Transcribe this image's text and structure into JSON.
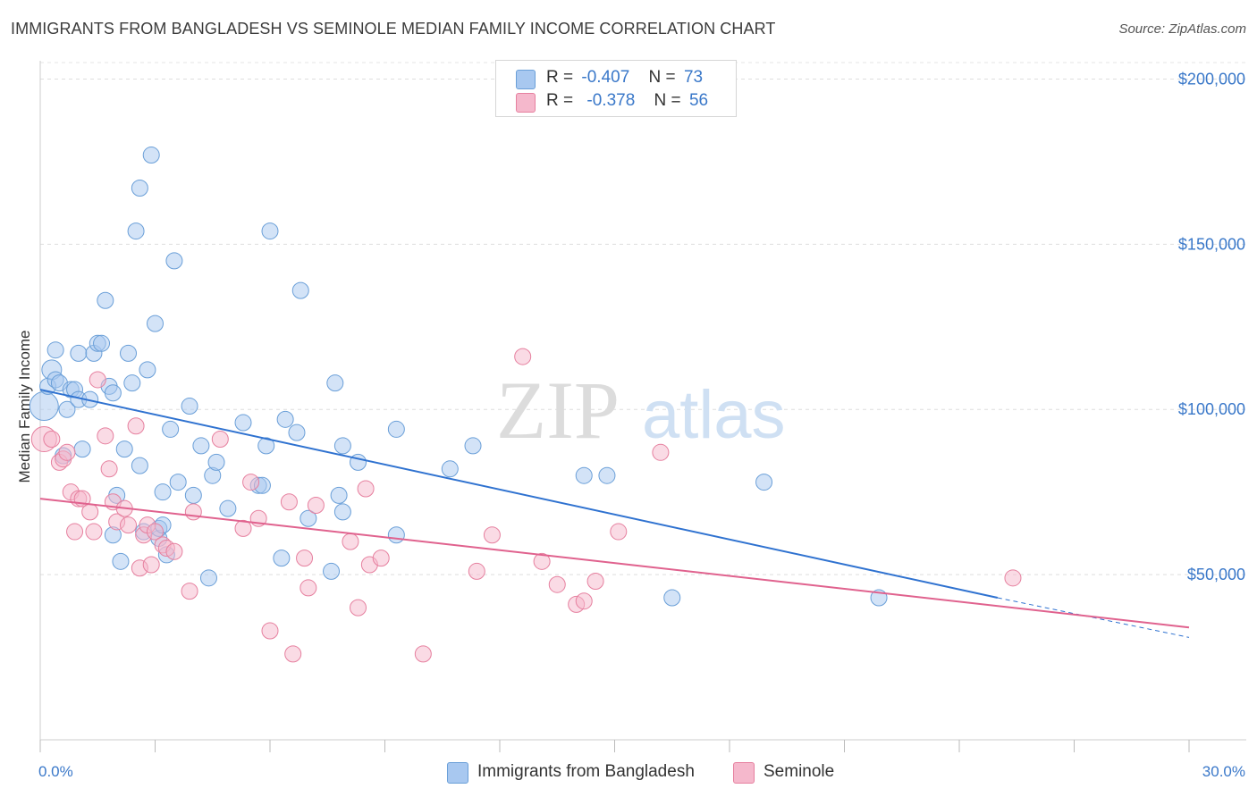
{
  "title": "IMMIGRANTS FROM BANGLADESH VS SEMINOLE MEDIAN FAMILY INCOME CORRELATION CHART",
  "source": "Source: ZipAtlas.com",
  "watermark": {
    "zip": "ZIP",
    "atlas": "atlas"
  },
  "legend": {
    "r_label": "R =",
    "n_label": "N =",
    "rows": [
      {
        "r": "-0.407",
        "n": "73",
        "color": "#a8c8f0",
        "border": "#6a9fd8"
      },
      {
        "r": "-0.378",
        "n": "56",
        "color": "#f5b8cc",
        "border": "#e6809f"
      }
    ]
  },
  "chart_data": {
    "type": "scatter",
    "title": "IMMIGRANTS FROM BANGLADESH VS SEMINOLE MEDIAN FAMILY INCOME CORRELATION CHART",
    "xlabel": "",
    "ylabel": "Median Family Income",
    "xlim": [
      0,
      30
    ],
    "ylim": [
      0,
      205000
    ],
    "x_tick_labels": [
      "0.0%",
      "30.0%"
    ],
    "y_ticks": [
      50000,
      100000,
      150000,
      200000
    ],
    "y_tick_labels": [
      "$50,000",
      "$100,000",
      "$150,000",
      "$200,000"
    ],
    "grid": "horizontal dashed",
    "legend_position": "top-center",
    "series": [
      {
        "name": "Immigrants from Bangladesh",
        "color": "#a8c8f0",
        "stroke": "#6a9fd8",
        "trend_color": "#2f72d0",
        "trend": {
          "x0": 0,
          "y0": 106000,
          "x1": 25,
          "y1": 43000,
          "dashed_to_x": 30,
          "dashed_to_y": 31000
        },
        "points": [
          [
            0.1,
            101000
          ],
          [
            0.2,
            107000
          ],
          [
            0.3,
            112000
          ],
          [
            0.4,
            109000
          ],
          [
            0.4,
            118000
          ],
          [
            0.5,
            108000
          ],
          [
            0.6,
            86000
          ],
          [
            0.7,
            100000
          ],
          [
            0.8,
            106000
          ],
          [
            0.9,
            106000
          ],
          [
            1.0,
            103000
          ],
          [
            1.1,
            88000
          ],
          [
            1.0,
            117000
          ],
          [
            1.3,
            103000
          ],
          [
            1.4,
            117000
          ],
          [
            1.5,
            120000
          ],
          [
            1.6,
            120000
          ],
          [
            1.7,
            133000
          ],
          [
            1.8,
            107000
          ],
          [
            1.9,
            105000
          ],
          [
            1.9,
            62000
          ],
          [
            2.0,
            74000
          ],
          [
            2.1,
            54000
          ],
          [
            2.2,
            88000
          ],
          [
            2.3,
            117000
          ],
          [
            2.4,
            108000
          ],
          [
            2.5,
            154000
          ],
          [
            2.6,
            83000
          ],
          [
            2.6,
            167000
          ],
          [
            2.7,
            63000
          ],
          [
            2.8,
            112000
          ],
          [
            2.9,
            177000
          ],
          [
            3.0,
            126000
          ],
          [
            3.1,
            61000
          ],
          [
            3.1,
            64000
          ],
          [
            3.2,
            65000
          ],
          [
            3.3,
            56000
          ],
          [
            3.2,
            75000
          ],
          [
            3.4,
            94000
          ],
          [
            3.5,
            145000
          ],
          [
            3.6,
            78000
          ],
          [
            3.9,
            101000
          ],
          [
            4.0,
            74000
          ],
          [
            4.2,
            89000
          ],
          [
            4.4,
            49000
          ],
          [
            4.5,
            80000
          ],
          [
            4.6,
            84000
          ],
          [
            4.9,
            70000
          ],
          [
            5.3,
            96000
          ],
          [
            5.7,
            77000
          ],
          [
            5.8,
            77000
          ],
          [
            5.9,
            89000
          ],
          [
            6.0,
            154000
          ],
          [
            6.3,
            55000
          ],
          [
            6.4,
            97000
          ],
          [
            6.7,
            93000
          ],
          [
            6.8,
            136000
          ],
          [
            7.0,
            67000
          ],
          [
            7.6,
            51000
          ],
          [
            7.7,
            108000
          ],
          [
            7.8,
            74000
          ],
          [
            7.9,
            89000
          ],
          [
            7.9,
            69000
          ],
          [
            8.3,
            84000
          ],
          [
            9.3,
            94000
          ],
          [
            9.3,
            62000
          ],
          [
            10.7,
            82000
          ],
          [
            11.3,
            89000
          ],
          [
            14.2,
            80000
          ],
          [
            14.8,
            80000
          ],
          [
            16.5,
            43000
          ],
          [
            18.9,
            78000
          ],
          [
            21.9,
            43000
          ]
        ]
      },
      {
        "name": "Seminole",
        "color": "#f5b8cc",
        "stroke": "#e6809f",
        "trend_color": "#e0628e",
        "trend": {
          "x0": 0,
          "y0": 73000,
          "x1": 30,
          "y1": 34000
        },
        "points": [
          [
            0.1,
            91000
          ],
          [
            0.3,
            91000
          ],
          [
            0.5,
            84000
          ],
          [
            0.6,
            85000
          ],
          [
            0.7,
            87000
          ],
          [
            0.8,
            75000
          ],
          [
            0.9,
            63000
          ],
          [
            1.0,
            73000
          ],
          [
            1.1,
            73000
          ],
          [
            1.3,
            69000
          ],
          [
            1.4,
            63000
          ],
          [
            1.5,
            109000
          ],
          [
            1.7,
            92000
          ],
          [
            1.8,
            82000
          ],
          [
            1.9,
            72000
          ],
          [
            2.0,
            66000
          ],
          [
            2.2,
            70000
          ],
          [
            2.3,
            65000
          ],
          [
            2.5,
            95000
          ],
          [
            2.6,
            52000
          ],
          [
            2.7,
            62000
          ],
          [
            2.8,
            65000
          ],
          [
            2.9,
            53000
          ],
          [
            3.0,
            63000
          ],
          [
            3.2,
            59000
          ],
          [
            3.3,
            58000
          ],
          [
            3.5,
            57000
          ],
          [
            3.9,
            45000
          ],
          [
            4.0,
            69000
          ],
          [
            4.7,
            91000
          ],
          [
            5.3,
            64000
          ],
          [
            5.5,
            78000
          ],
          [
            5.7,
            67000
          ],
          [
            6.0,
            33000
          ],
          [
            6.5,
            72000
          ],
          [
            6.6,
            26000
          ],
          [
            6.9,
            55000
          ],
          [
            7.0,
            46000
          ],
          [
            7.2,
            71000
          ],
          [
            8.1,
            60000
          ],
          [
            8.3,
            40000
          ],
          [
            8.5,
            76000
          ],
          [
            8.6,
            53000
          ],
          [
            8.9,
            55000
          ],
          [
            10.0,
            26000
          ],
          [
            11.4,
            51000
          ],
          [
            11.8,
            62000
          ],
          [
            12.6,
            116000
          ],
          [
            13.1,
            54000
          ],
          [
            13.5,
            47000
          ],
          [
            14.0,
            41000
          ],
          [
            14.2,
            42000
          ],
          [
            14.5,
            48000
          ],
          [
            15.1,
            63000
          ],
          [
            16.2,
            87000
          ],
          [
            25.4,
            49000
          ]
        ]
      }
    ]
  },
  "bottom_legend": [
    "Immigrants from Bangladesh",
    "Seminole"
  ]
}
